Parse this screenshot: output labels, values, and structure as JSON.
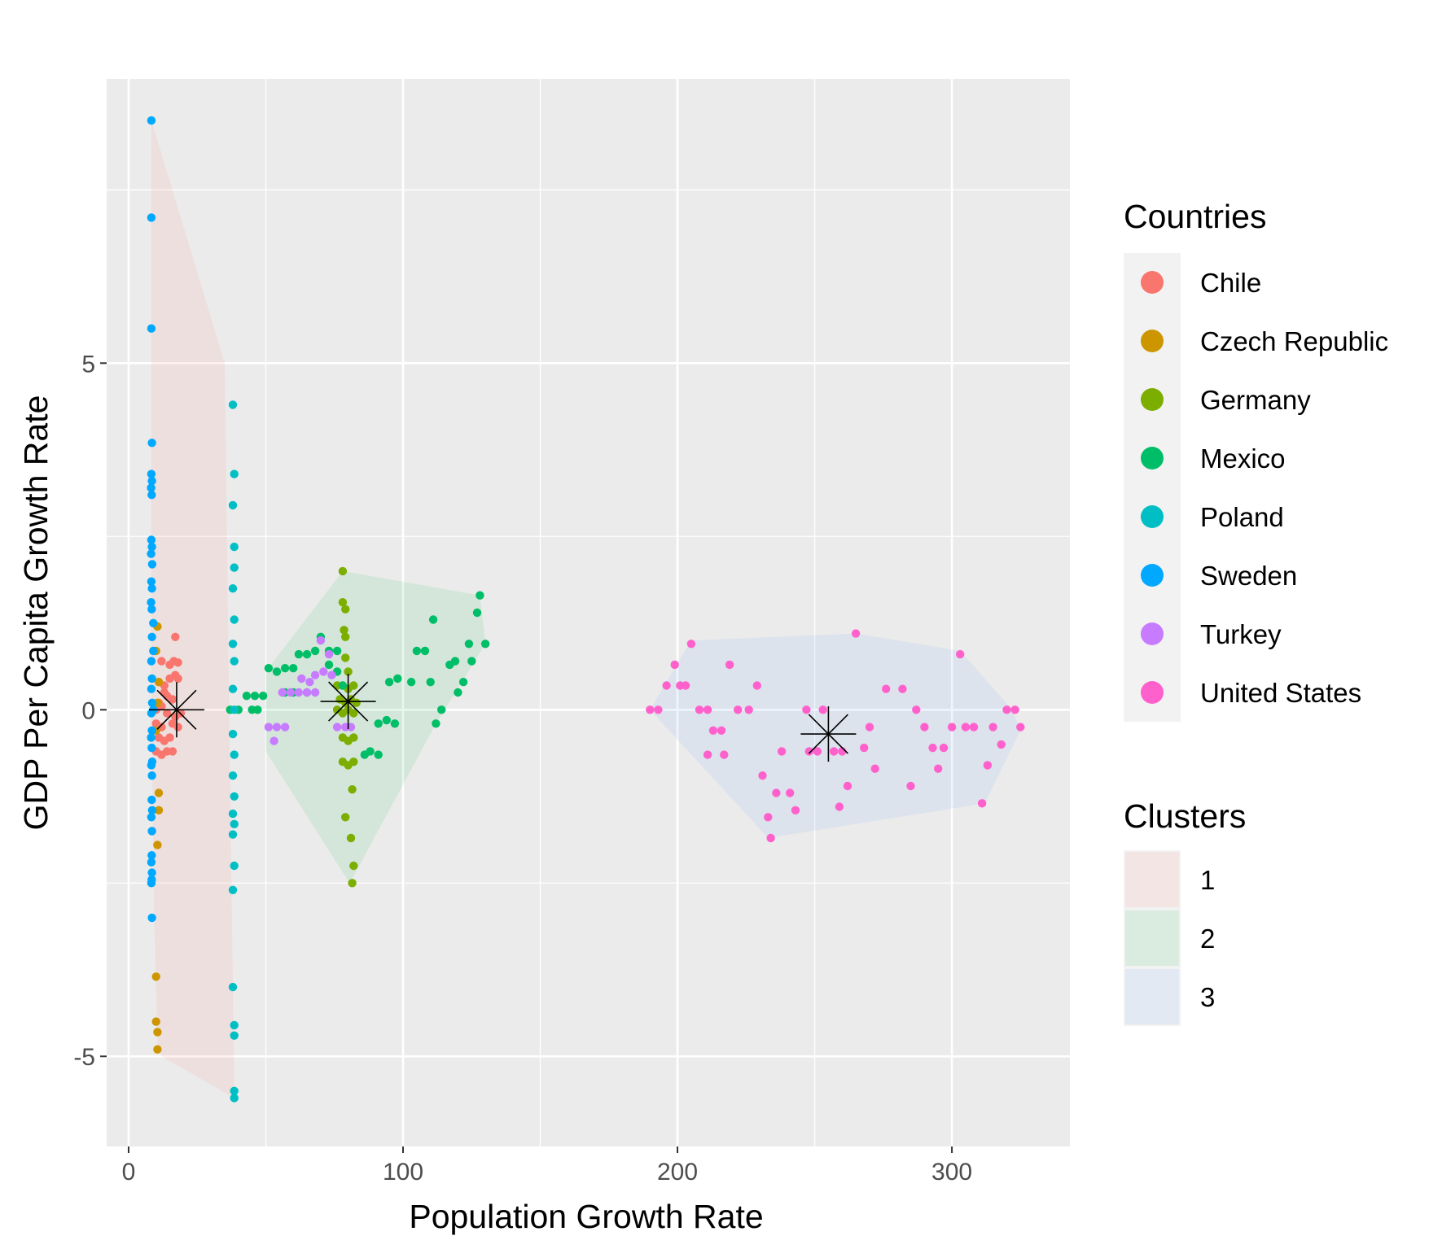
{
  "chart_data": {
    "type": "scatter",
    "xlabel": "Population Growth Rate",
    "ylabel": "GDP Per Capita Growth Rate",
    "xlim": [
      -8,
      343
    ],
    "ylim": [
      -6.3,
      9.1
    ],
    "x_ticks": [
      0,
      100,
      200,
      300
    ],
    "x_tick_labels": [
      "0",
      "100",
      "200",
      "300"
    ],
    "y_ticks": [
      -5,
      0,
      5
    ],
    "y_tick_labels": [
      "-5",
      "0",
      "5"
    ],
    "grid": true,
    "legend_position": "right",
    "legends": {
      "countries": {
        "title": "Countries",
        "entries": [
          {
            "label": "Chile",
            "color": "#F8766D"
          },
          {
            "label": "Czech Republic",
            "color": "#CD9600"
          },
          {
            "label": "Germany",
            "color": "#7CAE00"
          },
          {
            "label": "Mexico",
            "color": "#00BE67"
          },
          {
            "label": "Poland",
            "color": "#00BFC4"
          },
          {
            "label": "Sweden",
            "color": "#00A9FF"
          },
          {
            "label": "Turkey",
            "color": "#C77CFF"
          },
          {
            "label": "United States",
            "color": "#FF61CC"
          }
        ]
      },
      "clusters": {
        "title": "Clusters",
        "entries": [
          {
            "label": "1",
            "color": "#F8766D"
          },
          {
            "label": "2",
            "color": "#00BA38"
          },
          {
            "label": "3",
            "color": "#619CFF"
          }
        ]
      }
    },
    "clusters": [
      {
        "name": "1",
        "color": "#F8766D",
        "centroid": [
          17.5,
          0.0
        ],
        "hull": [
          [
            8.3,
            8.5
          ],
          [
            35,
            5.0
          ],
          [
            38.5,
            -5.6
          ],
          [
            12,
            -5.0
          ],
          [
            10.5,
            -4.8
          ],
          [
            9.3,
            -3.0
          ],
          [
            8.3,
            0.0
          ]
        ]
      },
      {
        "name": "2",
        "color": "#00BA38",
        "centroid": [
          80,
          0.12
        ],
        "hull": [
          [
            50,
            0.55
          ],
          [
            78,
            2.0
          ],
          [
            128,
            1.65
          ],
          [
            130,
            0.95
          ],
          [
            112,
            -0.2
          ],
          [
            82,
            -2.4
          ],
          [
            80.5,
            -2.5
          ],
          [
            50,
            -0.6
          ]
        ]
      },
      {
        "name": "3",
        "color": "#619CFF",
        "centroid": [
          255,
          -0.35
        ],
        "hull": [
          [
            190,
            0.0
          ],
          [
            205,
            1.0
          ],
          [
            265,
            1.1
          ],
          [
            303,
            0.85
          ],
          [
            322,
            0.0
          ],
          [
            325,
            -0.3
          ],
          [
            312,
            -1.35
          ],
          [
            233,
            -1.85
          ]
        ]
      }
    ],
    "series": [
      {
        "name": "Chile",
        "color": "#F8766D",
        "points": [
          [
            17,
            1.05
          ],
          [
            12,
            0.7
          ],
          [
            15,
            0.65
          ],
          [
            16.5,
            0.7
          ],
          [
            18,
            0.68
          ],
          [
            11,
            0.4
          ],
          [
            13,
            0.35
          ],
          [
            15,
            0.45
          ],
          [
            17,
            0.5
          ],
          [
            18,
            0.45
          ],
          [
            13,
            0.25
          ],
          [
            14,
            0.2
          ],
          [
            16,
            0.15
          ],
          [
            11,
            0.1
          ],
          [
            12,
            0.05
          ],
          [
            10,
            0.0
          ],
          [
            14,
            -0.05
          ],
          [
            17,
            -0.1
          ],
          [
            19,
            -0.05
          ],
          [
            10,
            -0.2
          ],
          [
            12,
            -0.25
          ],
          [
            16,
            -0.2
          ],
          [
            18,
            -0.25
          ],
          [
            11,
            -0.4
          ],
          [
            13,
            -0.45
          ],
          [
            15,
            -0.4
          ],
          [
            10,
            -0.6
          ],
          [
            12,
            -0.65
          ],
          [
            14,
            -0.6
          ],
          [
            16,
            -0.6
          ]
        ]
      },
      {
        "name": "Czech Republic",
        "color": "#CD9600",
        "points": [
          [
            10.5,
            1.2
          ],
          [
            10,
            0.85
          ],
          [
            11,
            0.4
          ],
          [
            10.5,
            0.1
          ],
          [
            10,
            -0.3
          ],
          [
            11,
            -1.2
          ],
          [
            11,
            -1.45
          ],
          [
            10.5,
            -1.95
          ],
          [
            10,
            -3.85
          ],
          [
            10,
            -4.5
          ],
          [
            10.5,
            -4.65
          ],
          [
            10.5,
            -4.9
          ]
        ]
      },
      {
        "name": "Germany",
        "color": "#7CAE00",
        "points": [
          [
            78,
            2.0
          ],
          [
            78,
            1.55
          ],
          [
            79,
            1.45
          ],
          [
            78.5,
            1.15
          ],
          [
            79,
            1.05
          ],
          [
            79,
            0.75
          ],
          [
            80,
            0.55
          ],
          [
            76,
            0.35
          ],
          [
            78,
            0.35
          ],
          [
            80,
            0.3
          ],
          [
            82,
            0.35
          ],
          [
            77,
            0.15
          ],
          [
            79,
            0.1
          ],
          [
            81,
            0.15
          ],
          [
            83,
            0.1
          ],
          [
            76,
            0.0
          ],
          [
            78,
            -0.05
          ],
          [
            80,
            0.0
          ],
          [
            82,
            -0.05
          ],
          [
            78,
            -0.4
          ],
          [
            80,
            -0.45
          ],
          [
            82,
            -0.4
          ],
          [
            78,
            -0.75
          ],
          [
            80,
            -0.8
          ],
          [
            82,
            -0.75
          ],
          [
            81.5,
            -1.15
          ],
          [
            79,
            -1.55
          ],
          [
            81,
            -1.85
          ],
          [
            82,
            -2.25
          ],
          [
            81.5,
            -2.5
          ]
        ]
      },
      {
        "name": "Mexico",
        "color": "#00BE67",
        "points": [
          [
            43,
            0.2
          ],
          [
            46,
            0.2
          ],
          [
            49,
            0.2
          ],
          [
            51,
            0.6
          ],
          [
            54,
            0.55
          ],
          [
            57,
            0.6
          ],
          [
            60,
            0.6
          ],
          [
            62,
            0.8
          ],
          [
            65,
            0.8
          ],
          [
            68,
            0.85
          ],
          [
            70,
            1.05
          ],
          [
            73,
            0.85
          ],
          [
            76,
            0.85
          ],
          [
            73,
            0.65
          ],
          [
            76,
            0.55
          ],
          [
            78,
            0.35
          ],
          [
            88,
            -0.6
          ],
          [
            91,
            -0.65
          ],
          [
            86,
            -0.65
          ],
          [
            91,
            -0.2
          ],
          [
            94,
            -0.15
          ],
          [
            97,
            -0.2
          ],
          [
            95,
            0.4
          ],
          [
            98,
            0.45
          ],
          [
            103,
            0.4
          ],
          [
            105,
            0.85
          ],
          [
            108,
            0.85
          ],
          [
            110,
            0.4
          ],
          [
            111,
            1.3
          ],
          [
            112,
            -0.2
          ],
          [
            114,
            0.0
          ],
          [
            117,
            0.65
          ],
          [
            119,
            0.7
          ],
          [
            120,
            0.25
          ],
          [
            122,
            0.4
          ],
          [
            124,
            0.95
          ],
          [
            125,
            0.7
          ],
          [
            127,
            1.4
          ],
          [
            128,
            1.65
          ],
          [
            130,
            0.95
          ],
          [
            37,
            0.0
          ],
          [
            40,
            0.0
          ],
          [
            45,
            0.0
          ],
          [
            47,
            0.0
          ],
          [
            57,
            0.25
          ],
          [
            60,
            0.25
          ],
          [
            65,
            0.25
          ]
        ]
      },
      {
        "name": "Poland",
        "color": "#00BFC4",
        "points": [
          [
            38,
            4.4
          ],
          [
            38.5,
            3.4
          ],
          [
            38,
            2.95
          ],
          [
            38.5,
            2.35
          ],
          [
            38.5,
            2.05
          ],
          [
            38,
            1.75
          ],
          [
            38.5,
            1.3
          ],
          [
            38,
            0.95
          ],
          [
            38.5,
            0.7
          ],
          [
            38,
            0.3
          ],
          [
            38.5,
            0.0
          ],
          [
            38,
            -0.35
          ],
          [
            38.5,
            -0.65
          ],
          [
            38,
            -0.95
          ],
          [
            38.5,
            -1.25
          ],
          [
            38,
            -1.5
          ],
          [
            38.5,
            -1.65
          ],
          [
            38,
            -1.8
          ],
          [
            38.5,
            -2.25
          ],
          [
            38,
            -2.6
          ],
          [
            38,
            -4.0
          ],
          [
            38.5,
            -4.55
          ],
          [
            38.5,
            -4.7
          ],
          [
            38.5,
            -5.5
          ],
          [
            38.5,
            -5.6
          ]
        ]
      },
      {
        "name": "Sweden",
        "color": "#00A9FF",
        "points": [
          [
            8.3,
            8.5
          ],
          [
            8.3,
            7.1
          ],
          [
            8.3,
            5.5
          ],
          [
            8.5,
            3.85
          ],
          [
            8.3,
            3.4
          ],
          [
            8.5,
            3.3
          ],
          [
            8.2,
            3.2
          ],
          [
            8.4,
            3.1
          ],
          [
            8.3,
            2.45
          ],
          [
            8.5,
            2.35
          ],
          [
            8.2,
            2.25
          ],
          [
            8.6,
            2.1
          ],
          [
            8.3,
            1.85
          ],
          [
            8.5,
            1.75
          ],
          [
            8.2,
            1.55
          ],
          [
            8.4,
            1.45
          ],
          [
            9,
            1.25
          ],
          [
            8.5,
            1.05
          ],
          [
            9,
            0.85
          ],
          [
            8.3,
            0.7
          ],
          [
            8.5,
            0.45
          ],
          [
            8.3,
            0.3
          ],
          [
            8.6,
            0.1
          ],
          [
            9,
            0.0
          ],
          [
            8.3,
            -0.05
          ],
          [
            8.5,
            -0.3
          ],
          [
            8.2,
            -0.4
          ],
          [
            8.4,
            -0.55
          ],
          [
            8.6,
            -0.75
          ],
          [
            8.3,
            -0.8
          ],
          [
            8.5,
            -0.95
          ],
          [
            8.4,
            -1.3
          ],
          [
            8.6,
            -1.45
          ],
          [
            8.3,
            -1.55
          ],
          [
            8.5,
            -1.75
          ],
          [
            8.4,
            -2.1
          ],
          [
            8.3,
            -2.2
          ],
          [
            8.5,
            -2.35
          ],
          [
            8.4,
            -2.45
          ],
          [
            8.3,
            -2.5
          ],
          [
            8.5,
            -3.0
          ]
        ]
      },
      {
        "name": "Turkey",
        "color": "#C77CFF",
        "points": [
          [
            70,
            1.0
          ],
          [
            73,
            0.8
          ],
          [
            68,
            0.5
          ],
          [
            71,
            0.55
          ],
          [
            74,
            0.5
          ],
          [
            63,
            0.45
          ],
          [
            66,
            0.4
          ],
          [
            56,
            0.25
          ],
          [
            59,
            0.25
          ],
          [
            62,
            0.25
          ],
          [
            65,
            0.25
          ],
          [
            68,
            0.25
          ],
          [
            51,
            -0.25
          ],
          [
            54,
            -0.25
          ],
          [
            57,
            -0.25
          ],
          [
            53,
            -0.45
          ],
          [
            76,
            -0.25
          ],
          [
            79,
            -0.25
          ],
          [
            81,
            -0.25
          ]
        ]
      },
      {
        "name": "United States",
        "color": "#FF61CC",
        "points": [
          [
            205,
            0.95
          ],
          [
            265,
            1.1
          ],
          [
            303,
            0.8
          ],
          [
            199,
            0.65
          ],
          [
            219,
            0.65
          ],
          [
            196,
            0.35
          ],
          [
            201,
            0.35
          ],
          [
            203,
            0.35
          ],
          [
            229,
            0.35
          ],
          [
            276,
            0.3
          ],
          [
            282,
            0.3
          ],
          [
            190,
            0.0
          ],
          [
            193,
            0.0
          ],
          [
            208,
            0.0
          ],
          [
            211,
            0.0
          ],
          [
            222,
            0.0
          ],
          [
            226,
            0.0
          ],
          [
            247,
            0.0
          ],
          [
            253,
            0.0
          ],
          [
            287,
            0.0
          ],
          [
            320,
            0.0
          ],
          [
            323,
            0.0
          ],
          [
            213,
            -0.3
          ],
          [
            216,
            -0.3
          ],
          [
            270,
            -0.25
          ],
          [
            290,
            -0.25
          ],
          [
            300,
            -0.25
          ],
          [
            305,
            -0.25
          ],
          [
            308,
            -0.25
          ],
          [
            315,
            -0.25
          ],
          [
            325,
            -0.25
          ],
          [
            211,
            -0.65
          ],
          [
            217,
            -0.65
          ],
          [
            248,
            -0.6
          ],
          [
            251,
            -0.6
          ],
          [
            257,
            -0.6
          ],
          [
            260,
            -0.6
          ],
          [
            268,
            -0.55
          ],
          [
            293,
            -0.55
          ],
          [
            297,
            -0.55
          ],
          [
            318,
            -0.5
          ],
          [
            238,
            -0.6
          ],
          [
            272,
            -0.85
          ],
          [
            295,
            -0.85
          ],
          [
            313,
            -0.8
          ],
          [
            231,
            -0.95
          ],
          [
            262,
            -1.1
          ],
          [
            285,
            -1.1
          ],
          [
            236,
            -1.2
          ],
          [
            241,
            -1.2
          ],
          [
            243,
            -1.45
          ],
          [
            259,
            -1.4
          ],
          [
            233,
            -1.55
          ],
          [
            311,
            -1.35
          ],
          [
            234,
            -1.85
          ]
        ]
      }
    ]
  }
}
